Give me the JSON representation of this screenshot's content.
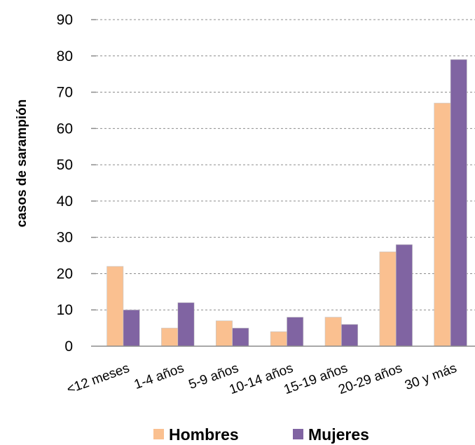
{
  "chart_data": {
    "type": "bar",
    "title": "",
    "xlabel": "",
    "ylabel": "casos de sarampión",
    "ylim": [
      0,
      90
    ],
    "yticks": [
      0,
      10,
      20,
      30,
      40,
      50,
      60,
      70,
      80,
      90
    ],
    "grid": true,
    "legend_position": "bottom",
    "categories": [
      "<12 meses",
      "1-4 años",
      "5-9 años",
      "10-14 años",
      "15-19 años",
      "20-29 años",
      "30 y más"
    ],
    "series": [
      {
        "name": "Hombres",
        "color": "#fac090",
        "values": [
          22,
          5,
          7,
          4,
          8,
          26,
          67
        ]
      },
      {
        "name": "Mujeres",
        "color": "#8064a2",
        "values": [
          10,
          12,
          5,
          8,
          6,
          28,
          79
        ]
      }
    ]
  }
}
